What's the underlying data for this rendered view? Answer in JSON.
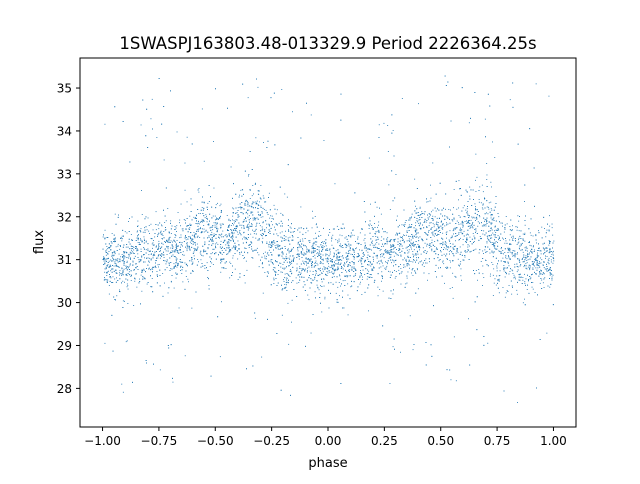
{
  "chart_data": {
    "type": "scatter",
    "title": "1SWASPJ163803.48-013329.9 Period 2226364.25s",
    "xlabel": "phase",
    "ylabel": "flux",
    "xlim": [
      -1.1,
      1.1
    ],
    "ylim": [
      27.1,
      35.7
    ],
    "x_ticks": [
      -1.0,
      -0.75,
      -0.5,
      -0.25,
      0.0,
      0.25,
      0.5,
      0.75,
      1.0
    ],
    "x_tick_labels": [
      "−1.00",
      "−0.75",
      "−0.50",
      "−0.25",
      "0.00",
      "0.25",
      "0.50",
      "0.75",
      "1.00"
    ],
    "y_ticks": [
      28,
      29,
      30,
      31,
      32,
      33,
      34,
      35
    ],
    "y_tick_labels": [
      "28",
      "29",
      "30",
      "31",
      "32",
      "33",
      "34",
      "35"
    ],
    "grid": false,
    "legend": "none",
    "marker_color": "#1f77b4",
    "series": [
      {
        "phase_profile": [
          {
            "phase": 0.0,
            "median_flux": 31.0,
            "spread": 0.35
          },
          {
            "phase": 0.1,
            "median_flux": 30.9,
            "spread": 0.4
          },
          {
            "phase": 0.18,
            "median_flux": 31.1,
            "spread": 0.45
          },
          {
            "phase": 0.25,
            "median_flux": 31.2,
            "spread": 0.4
          },
          {
            "phase": 0.35,
            "median_flux": 31.3,
            "spread": 0.4
          },
          {
            "phase": 0.45,
            "median_flux": 31.6,
            "spread": 0.45
          },
          {
            "phase": 0.55,
            "median_flux": 31.4,
            "spread": 0.4
          },
          {
            "phase": 0.62,
            "median_flux": 31.7,
            "spread": 0.55
          },
          {
            "phase": 0.68,
            "median_flux": 31.9,
            "spread": 0.6
          },
          {
            "phase": 0.75,
            "median_flux": 31.3,
            "spread": 0.45
          },
          {
            "phase": 0.85,
            "median_flux": 31.0,
            "spread": 0.4
          },
          {
            "phase": 1.0,
            "median_flux": 31.0,
            "spread": 0.35
          }
        ],
        "flux_range": [
          27.4,
          35.3
        ],
        "phase_range": [
          -1.0,
          1.0
        ],
        "approx_points": 6000
      }
    ]
  }
}
